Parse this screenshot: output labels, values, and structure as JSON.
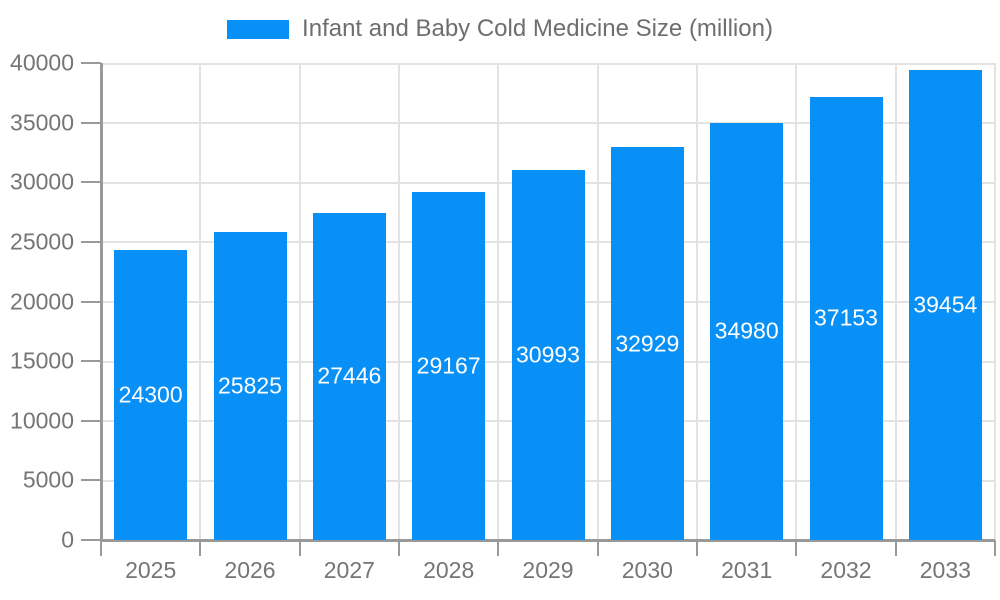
{
  "legend": {
    "label": "Infant and Baby Cold Medicine Size (million)"
  },
  "chart_data": {
    "type": "bar",
    "title": "Infant and Baby Cold Medicine Size (million)",
    "categories": [
      "2025",
      "2026",
      "2027",
      "2028",
      "2029",
      "2030",
      "2031",
      "2032",
      "2033"
    ],
    "values": [
      24300,
      25825,
      27446,
      29167,
      30993,
      32929,
      34980,
      37153,
      39454
    ],
    "series_name": "Infant and Baby Cold Medicine Size (million)",
    "xlabel": "",
    "ylabel": "",
    "ylim": [
      0,
      40000
    ],
    "ytick_step": 5000,
    "ytick_labels": [
      "0",
      "5000",
      "10000",
      "15000",
      "20000",
      "25000",
      "30000",
      "35000",
      "40000"
    ],
    "grid": true,
    "grid_vertical": true,
    "bar_labels_position": "inside-middle",
    "legend_position": "top-center",
    "colors": {
      "bar": "#0890f7",
      "bar_label": "#ffffff",
      "grid": "#e3e3e3",
      "axis": "#999999",
      "tick_label": "#757575",
      "legend_text": "#6e6e6e"
    }
  }
}
